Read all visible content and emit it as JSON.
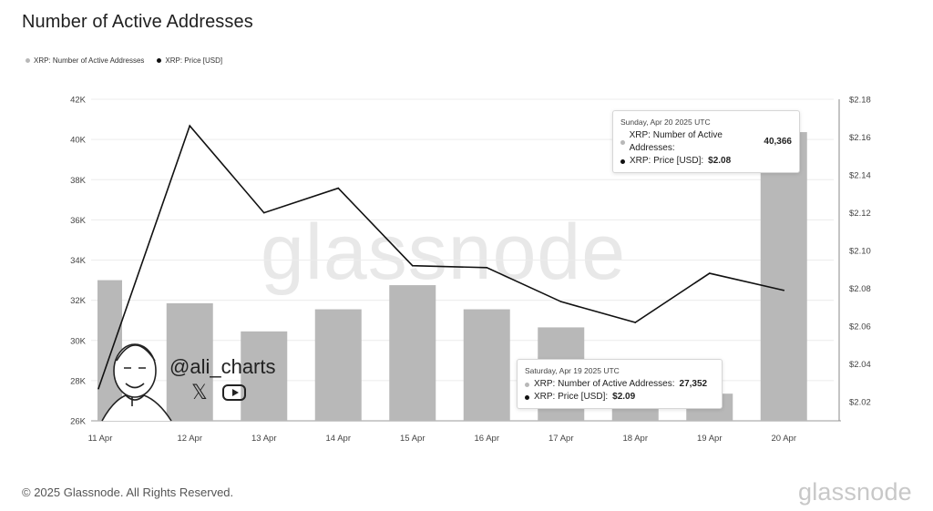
{
  "title": "Number of Active Addresses",
  "legend": {
    "addresses": "XRP: Number of Active Addresses",
    "price": "XRP: Price [USD]"
  },
  "footer": "© 2025 Glassnode. All Rights Reserved.",
  "brand": "glassnode",
  "watermark": "glassnode",
  "handle": "@ali_charts",
  "icons": [
    "avatar-illustration",
    "x-logo-icon",
    "youtube-icon"
  ],
  "colors": {
    "bars": "#b8b8b8",
    "line": "#111111",
    "grid": "#ececec"
  },
  "tooltips": [
    {
      "date": "Sunday, Apr 20 2025 UTC",
      "addresses_label": "XRP: Number of Active Addresses:",
      "addresses_value": "40,366",
      "price_label": "XRP: Price [USD]:",
      "price_value": "$2.08"
    },
    {
      "date": "Saturday, Apr 19 2025 UTC",
      "addresses_label": "XRP: Number of Active Addresses:",
      "addresses_value": "27,352",
      "price_label": "XRP: Price [USD]:",
      "price_value": "$2.09"
    }
  ],
  "chart_data": {
    "type": "bar",
    "categories": [
      "11 Apr",
      "12 Apr",
      "13 Apr",
      "14 Apr",
      "15 Apr",
      "16 Apr",
      "17 Apr",
      "18 Apr",
      "19 Apr",
      "20 Apr"
    ],
    "series": [
      {
        "name": "XRP: Number of Active Addresses",
        "type": "bar",
        "axis": "left",
        "values": [
          33000,
          31850,
          30450,
          31550,
          32750,
          31550,
          30650,
          28700,
          27352,
          40366
        ]
      },
      {
        "name": "XRP: Price [USD]",
        "type": "line",
        "axis": "right",
        "values": [
          2.027,
          2.166,
          2.12,
          2.133,
          2.092,
          2.091,
          2.073,
          2.062,
          2.088,
          2.079
        ]
      }
    ],
    "y_left": {
      "ticks": [
        "42K",
        "40K",
        "38K",
        "36K",
        "34K",
        "32K",
        "30K",
        "28K",
        "26K"
      ],
      "range": [
        26000,
        42000
      ]
    },
    "y_right": {
      "ticks": [
        "$2.18",
        "$2.16",
        "$2.14",
        "$2.12",
        "$2.10",
        "$2.08",
        "$2.06",
        "$2.04",
        "$2.02"
      ],
      "range": [
        2.01,
        2.18
      ]
    },
    "grid": true,
    "legend_position": "top-left"
  }
}
